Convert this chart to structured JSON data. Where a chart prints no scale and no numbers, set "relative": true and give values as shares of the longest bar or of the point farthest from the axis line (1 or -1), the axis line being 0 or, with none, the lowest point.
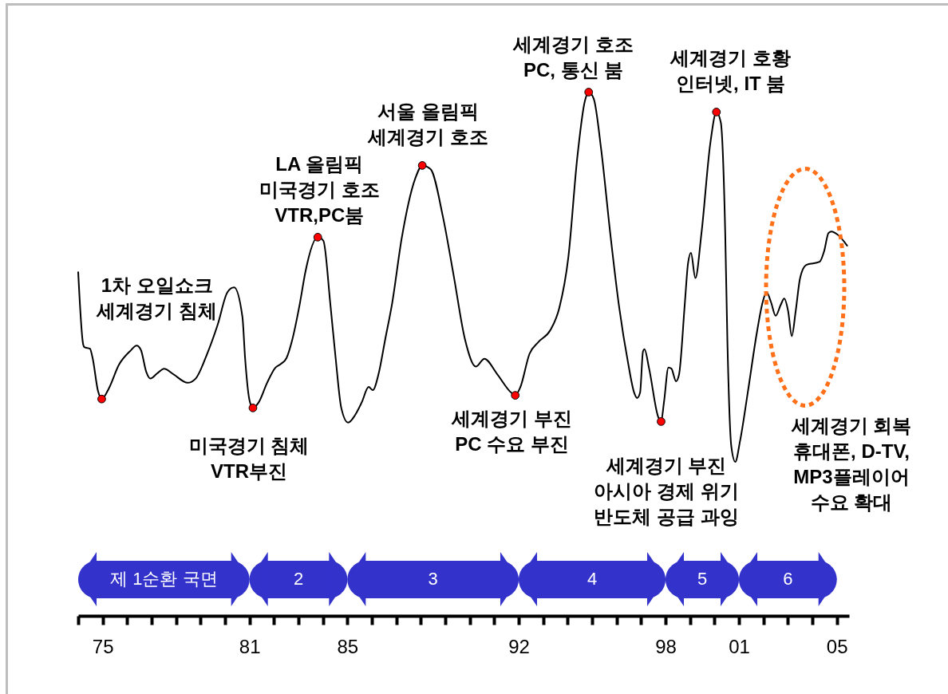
{
  "chart_data": {
    "type": "line",
    "relative": true,
    "x": [
      1974.0,
      1974.2,
      1974.25,
      1974.48,
      1974.59,
      1974.81,
      1974.96,
      1975.26,
      1975.66,
      1976.11,
      1976.39,
      1976.56,
      1976.78,
      1976.95,
      1977.23,
      1977.51,
      1977.9,
      1978.47,
      1978.8,
      1979.25,
      1979.7,
      1980.1,
      1980.37,
      1980.71,
      1980.82,
      1980.99,
      1981.14,
      1981.38,
      1981.72,
      1982.06,
      1982.28,
      1982.51,
      1982.73,
      1983.06,
      1983.29,
      1983.79,
      1984.02,
      1984.3,
      1984.52,
      1984.75,
      1985.03,
      1985.31,
      1985.59,
      1985.87,
      1986.04,
      1986.27,
      1986.55,
      1986.83,
      1987.22,
      1987.78,
      1988.06,
      1988.4,
      1988.9,
      1989.35,
      1989.8,
      1990.25,
      1990.6,
      1991.1,
      1991.7,
      1991.86,
      1992.07,
      1992.44,
      1992.81,
      1993.3,
      1993.66,
      1994.03,
      1994.39,
      1994.7,
      1994.86,
      1995.07,
      1995.37,
      1995.74,
      1996.11,
      1996.47,
      1996.72,
      1996.84,
      1996.96,
      1997.08,
      1997.14,
      1997.33,
      1997.7,
      1997.82,
      1997.94,
      1998.12,
      1998.24,
      1998.43,
      1998.55,
      1998.79,
      1998.92,
      1999.04,
      1999.22,
      1999.47,
      1999.83,
      2000.08,
      2000.26,
      2000.44,
      2000.53,
      2000.69,
      2000.85,
      2001.05,
      2001.36,
      2001.73,
      2001.97,
      2002.13,
      2002.31,
      2002.5,
      2002.71,
      2002.85,
      2003.01,
      2003.16,
      2003.32,
      2003.5,
      2003.75,
      2004.3,
      2004.48,
      2004.66,
      2004.78,
      2005.03,
      2005.42
    ],
    "series": [
      {
        "type": "line",
        "color": "#000000",
        "values": [
          0.656,
          0.519,
          0.513,
          0.51,
          0.492,
          0.429,
          0.414,
          0.435,
          0.479,
          0.505,
          0.516,
          0.508,
          0.466,
          0.453,
          0.463,
          0.472,
          0.461,
          0.445,
          0.453,
          0.498,
          0.556,
          0.618,
          0.627,
          0.571,
          0.492,
          0.414,
          0.397,
          0.408,
          0.445,
          0.474,
          0.481,
          0.492,
          0.524,
          0.597,
          0.658,
          0.723,
          0.716,
          0.597,
          0.492,
          0.397,
          0.369,
          0.383,
          0.408,
          0.437,
          0.431,
          0.461,
          0.529,
          0.597,
          0.721,
          0.836,
          0.86,
          0.853,
          0.763,
          0.648,
          0.529,
          0.476,
          0.491,
          0.463,
          0.426,
          0.421,
          0.437,
          0.5,
          0.523,
          0.546,
          0.588,
          0.685,
          0.873,
          0.982,
          1,
          0.987,
          0.891,
          0.731,
          0.588,
          0.483,
          0.426,
          0.416,
          0.426,
          0.505,
          0.509,
          0.472,
          0.38,
          0.371,
          0.409,
          0.474,
          0.472,
          0.448,
          0.46,
          0.597,
          0.673,
          0.693,
          0.645,
          0.731,
          0.902,
          0.962,
          0.942,
          0.731,
          0.522,
          0.323,
          0.294,
          0.335,
          0.426,
          0.54,
          0.599,
          0.618,
          0.599,
          0.573,
          0.594,
          0.606,
          0.582,
          0.534,
          0.582,
          0.645,
          0.67,
          0.676,
          0.696,
          0.731,
          0.734,
          0.728,
          0.707
        ]
      },
      {
        "type": "scatter",
        "color": "#ff0000",
        "x": [
          1974.96,
          1981.14,
          1983.79,
          1988.06,
          1991.86,
          1994.86,
          1997.82,
          2000.08
        ],
        "values": [
          0.414,
          0.397,
          0.723,
          0.86,
          0.421,
          1,
          0.371,
          0.962
        ]
      }
    ],
    "xlim": [
      1974,
      2005.5
    ],
    "xticks": [
      {
        "value": 1974,
        "label": null
      },
      {
        "value": 1975,
        "label": "75"
      },
      {
        "value": 1976,
        "label": null
      },
      {
        "value": 1977,
        "label": null
      },
      {
        "value": 1978,
        "label": null
      },
      {
        "value": 1979,
        "label": null
      },
      {
        "value": 1980,
        "label": null
      },
      {
        "value": 1981,
        "label": "81"
      },
      {
        "value": 1982,
        "label": null
      },
      {
        "value": 1983,
        "label": null
      },
      {
        "value": 1984,
        "label": null
      },
      {
        "value": 1985,
        "label": "85"
      },
      {
        "value": 1986,
        "label": null
      },
      {
        "value": 1987,
        "label": null
      },
      {
        "value": 1988,
        "label": null
      },
      {
        "value": 1989,
        "label": null
      },
      {
        "value": 1990,
        "label": null
      },
      {
        "value": 1991,
        "label": null
      },
      {
        "value": 1992,
        "label": "92"
      },
      {
        "value": 1993,
        "label": null
      },
      {
        "value": 1994,
        "label": null
      },
      {
        "value": 1995,
        "label": null
      },
      {
        "value": 1996,
        "label": null
      },
      {
        "value": 1997,
        "label": null
      },
      {
        "value": 1998,
        "label": "98"
      },
      {
        "value": 1999,
        "label": null
      },
      {
        "value": 2000,
        "label": null
      },
      {
        "value": 2001,
        "label": "01"
      },
      {
        "value": 2002,
        "label": null
      },
      {
        "value": 2003,
        "label": null
      },
      {
        "value": 2004,
        "label": null
      },
      {
        "value": 2005,
        "label": "05"
      }
    ],
    "bands": [
      {
        "axis": "x",
        "from": 1974,
        "to": 1981,
        "label": "제 1순환 국면",
        "color": "#3333cc"
      },
      {
        "axis": "x",
        "from": 1981,
        "to": 1985,
        "label": "2",
        "color": "#3333cc"
      },
      {
        "axis": "x",
        "from": 1985,
        "to": 1992,
        "label": "3",
        "color": "#3333cc"
      },
      {
        "axis": "x",
        "from": 1992,
        "to": 1998,
        "label": "4",
        "color": "#3333cc"
      },
      {
        "axis": "x",
        "from": 1998,
        "to": 2001,
        "label": "5",
        "color": "#3333cc"
      },
      {
        "axis": "x",
        "from": 2001,
        "to": 2005,
        "label": "6",
        "color": "#3333cc"
      }
    ],
    "annotations": [
      "1차 오일쇼크\n세계경기 침체",
      {
        "text": "미국경기 침체\nVTR부진",
        "x": 1981.14,
        "y": 0.397
      },
      {
        "text": "LA 올림픽\n미국경기 호조\nVTR,PC붐",
        "x": 1983.79,
        "y": 0.723
      },
      {
        "text": "서울 올림픽\n세계경기 호조",
        "x": 1988.06,
        "y": 0.86
      },
      {
        "text": "세계경기 부진\nPC 수요 부진",
        "x": 1991.86,
        "y": 0.421
      },
      {
        "text": "세계경기 호조\nPC, 통신 붐",
        "x": 1994.86,
        "y": 1
      },
      "세계경기 부진\n아시아 경제 위기\n반도체 공급 과잉",
      {
        "text": "세계경기 호황\n인터넷, IT 붐",
        "x": 2000.08,
        "y": 0.962
      },
      "세계경기 회복\n휴대폰, D-TV,\nMP3플레이어\n수요 확대"
    ]
  }
}
